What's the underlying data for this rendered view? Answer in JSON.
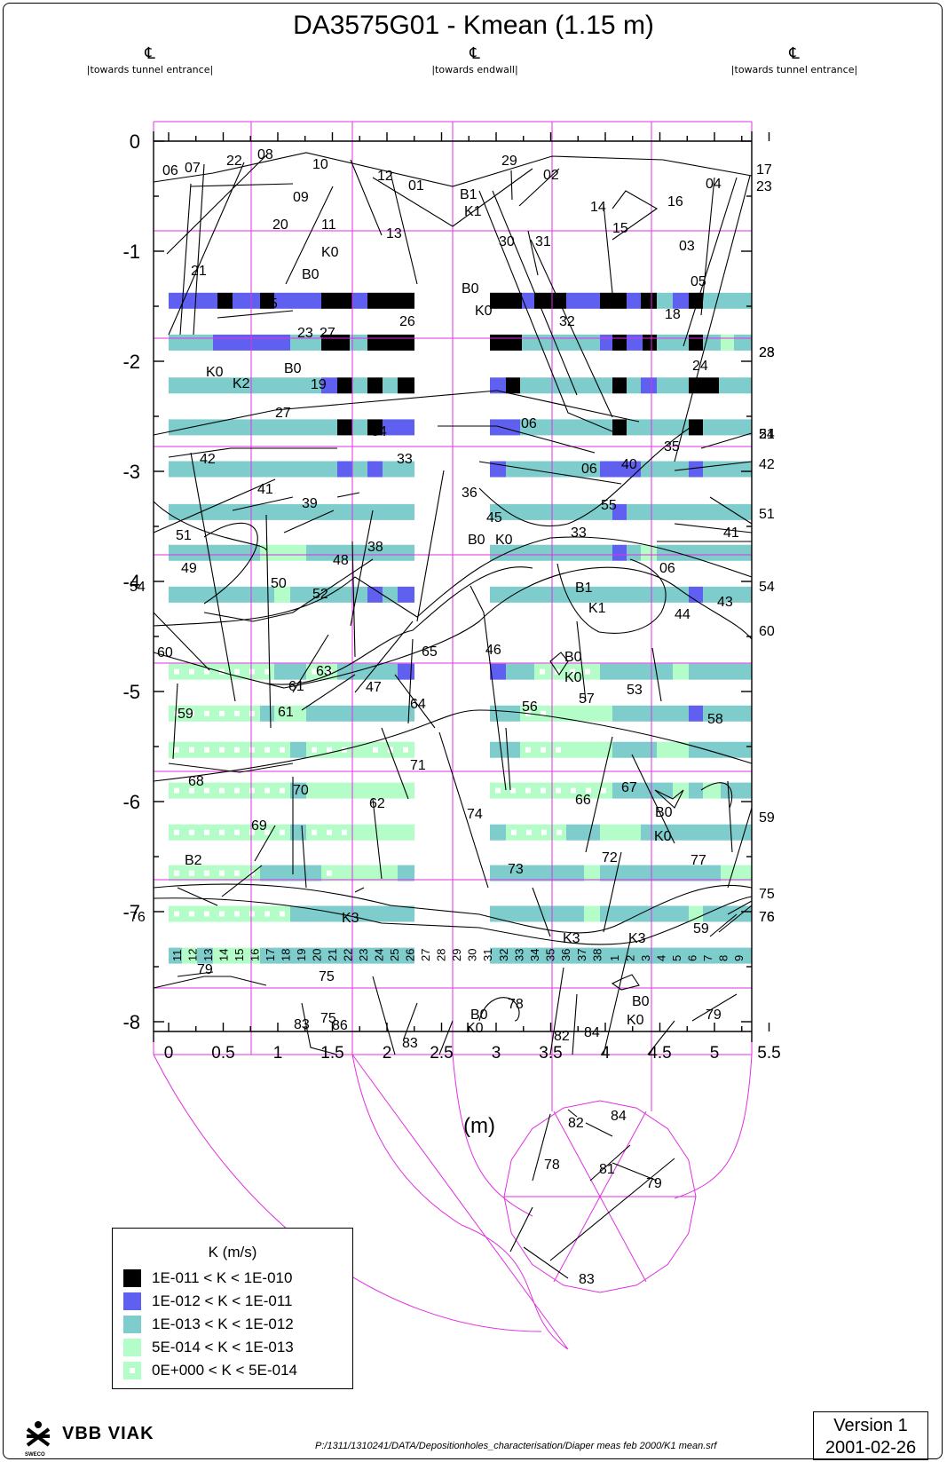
{
  "title": "DA3575G01 - Kmean (1.15 m)",
  "centerline_labels": [
    {
      "symbol": "℄",
      "text": "|towards tunnel entrance|"
    },
    {
      "symbol": "℄",
      "text": "|towards endwall|"
    },
    {
      "symbol": "℄",
      "text": "|towards tunnel entrance|"
    }
  ],
  "x_axis": {
    "label": "(m)",
    "ticks": [
      "0",
      "0.5",
      "1",
      "1.5",
      "2",
      "2.5",
      "3",
      "3.5",
      "4",
      "4.5",
      "5",
      "5.5"
    ]
  },
  "y_axis": {
    "ticks": [
      "0",
      "-1",
      "-2",
      "-3",
      "-4",
      "-5",
      "-6",
      "-7",
      "-8"
    ]
  },
  "column_numbers": [
    "11",
    "12",
    "13",
    "14",
    "15",
    "16",
    "17",
    "18",
    "19",
    "20",
    "21",
    "22",
    "23",
    "24",
    "25",
    "26",
    "27",
    "28",
    "29",
    "30",
    "31",
    "32",
    "33",
    "34",
    "35",
    "36",
    "37",
    "38",
    "1",
    "2",
    "3",
    "4",
    "5",
    "6",
    "7",
    "8",
    "9"
  ],
  "colors": {
    "k_e11": "#000000",
    "k_e12": "#6060f0",
    "k_e13": "#7ecccc",
    "k_e14": "#b4fcc8",
    "grid": "#e030e0"
  },
  "legend": {
    "title": "K (m/s)",
    "items": [
      {
        "label": "1E-011  < K <  1E-010",
        "color": "#000000",
        "dots": false
      },
      {
        "label": "1E-012  < K <  1E-011",
        "color": "#6060f0",
        "dots": false
      },
      {
        "label": "1E-013  < K <  1E-012",
        "color": "#7ecccc",
        "dots": false
      },
      {
        "label": "5E-014  < K <  1E-013",
        "color": "#b4fcc8",
        "dots": false
      },
      {
        "label": "0E+000  < K <  5E-014",
        "color": "#b4fcc8",
        "dots": true
      }
    ]
  },
  "fracture_labels": [
    "06",
    "07",
    "22",
    "08",
    "10",
    "12",
    "01",
    "29",
    "02",
    "B1",
    "K1",
    "04",
    "09",
    "14",
    "16",
    "20",
    "11",
    "K0",
    "B0",
    "13",
    "30",
    "31",
    "15",
    "03",
    "21",
    "05",
    "25",
    "K0",
    "26",
    "32",
    "18",
    "23",
    "27",
    "B0",
    "K0",
    "B0",
    "K2",
    "19",
    "24",
    "27",
    "34",
    "06",
    "35",
    "33",
    "06",
    "42",
    "40",
    "41",
    "36",
    "39",
    "55",
    "45",
    "B0",
    "K0",
    "33",
    "51",
    "41",
    "38",
    "48",
    "49",
    "50",
    "52",
    "B1",
    "K1",
    "06",
    "54",
    "43",
    "44",
    "46",
    "60",
    "65",
    "63",
    "B0",
    "K0",
    "47",
    "53",
    "61",
    "61",
    "64",
    "56",
    "57",
    "58",
    "59",
    "71",
    "70",
    "68",
    "67",
    "62",
    "66",
    "B0",
    "K0",
    "69",
    "74",
    "77",
    "72",
    "73",
    "B2",
    "K3",
    "K3",
    "K3",
    "59",
    "75",
    "76",
    "76",
    "79",
    "75",
    "78",
    "B0",
    "K0",
    "B0",
    "K0",
    "83",
    "86",
    "83",
    "82",
    "84",
    "79",
    "82",
    "84",
    "78",
    "81",
    "79",
    "83",
    "23",
    "24",
    "42",
    "51",
    "54",
    "60",
    "59",
    "75",
    "76",
    "17",
    "23",
    "28",
    "51",
    "24",
    "42"
  ],
  "logo": {
    "name": "VBB VIAK",
    "sub": "SWECO"
  },
  "file_path": "P:/1311/1310241/DATA/Depositionholes_characterisation/Diaper meas feb 2000/K1 mean.srf",
  "version": {
    "line1": "Version 1",
    "line2": "2001-02-26"
  }
}
